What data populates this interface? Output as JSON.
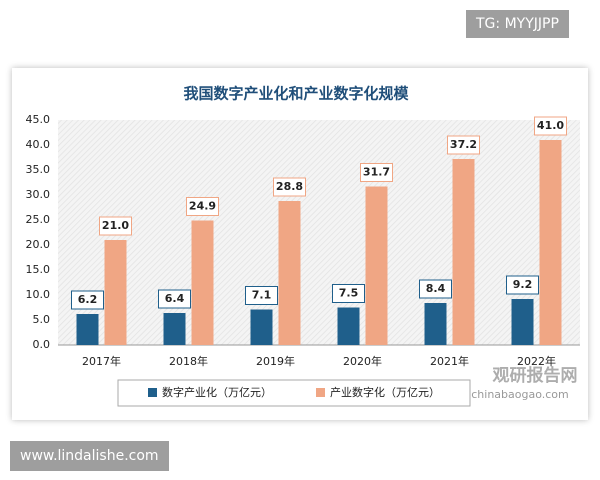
{
  "chart_data": {
    "type": "bar",
    "title": "我国数字产业化和产业数字化规模",
    "categories": [
      "2017年",
      "2018年",
      "2019年",
      "2020年",
      "2021年",
      "2022年"
    ],
    "series": [
      {
        "name": "数字产业化（万亿元）",
        "color": "#1f5f8b",
        "values": [
          6.2,
          6.4,
          7.1,
          7.5,
          8.4,
          9.2
        ],
        "value_labels": [
          "6.2",
          "6.4",
          "7.1",
          "7.5",
          "8.4",
          "9.2"
        ]
      },
      {
        "name": "产业数字化（万亿元）",
        "color": "#f0a684",
        "values": [
          21.0,
          24.9,
          28.8,
          31.7,
          37.2,
          41.0
        ],
        "value_labels": [
          "21.0",
          "24.9",
          "28.8",
          "31.7",
          "37.2",
          "41.0"
        ]
      }
    ],
    "ylim": [
      0,
      45
    ],
    "yticks": [
      {
        "value": 0,
        "label": "0.0"
      },
      {
        "value": 5,
        "label": "5.0"
      },
      {
        "value": 10,
        "label": "10.0"
      },
      {
        "value": 15,
        "label": "15.0"
      },
      {
        "value": 20,
        "label": "20.0"
      },
      {
        "value": 25,
        "label": "25.0"
      },
      {
        "value": 30,
        "label": "30.0"
      },
      {
        "value": 35,
        "label": "35.0"
      },
      {
        "value": 40,
        "label": "40.0"
      },
      {
        "value": 45,
        "label": "45.0"
      }
    ]
  },
  "overlay": {
    "top_right": "TG: MYYJJPP",
    "bottom_left": "www.lindalishe.com",
    "watermark_name": "观研报告网",
    "watermark_url": "chinabaogao.com"
  }
}
